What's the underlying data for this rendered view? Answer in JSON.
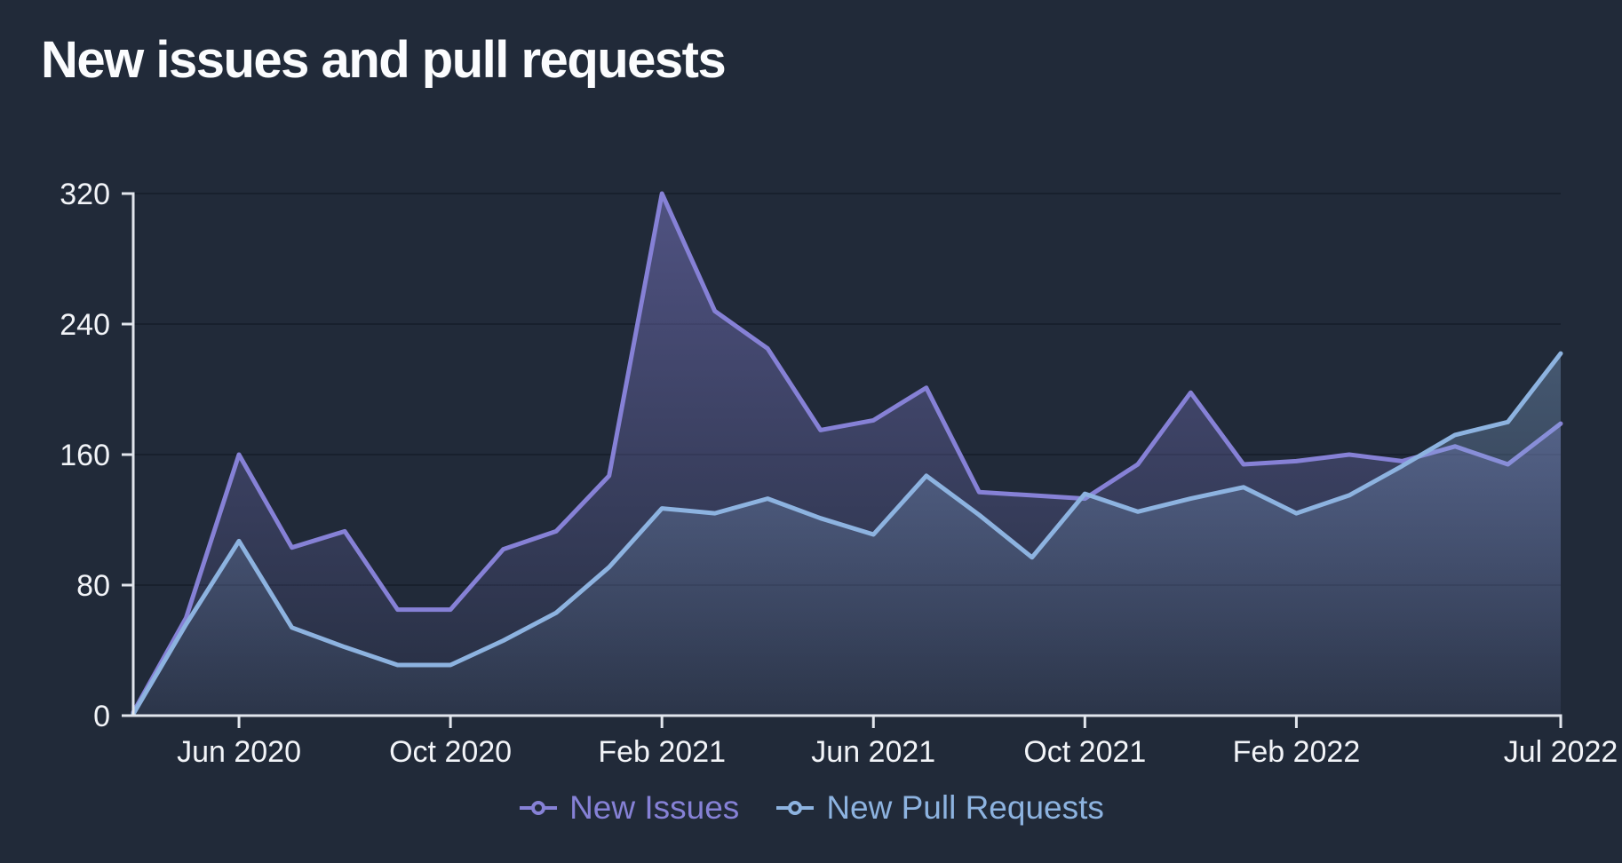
{
  "title": "New issues and pull requests",
  "colors": {
    "background": "#212a39",
    "title_text": "#fbfcfe",
    "axis_line": "#e2e6ed",
    "tick_label": "#f2f4f8",
    "gridline": "rgba(13,19,32,0.45)",
    "issues_line": "#8681d6",
    "pull_requests_line": "#8db3e0"
  },
  "chart_data": {
    "type": "area",
    "title": "New issues and pull requests",
    "x": [
      "Apr 2020",
      "May 2020",
      "Jun 2020",
      "Jul 2020",
      "Aug 2020",
      "Sep 2020",
      "Oct 2020",
      "Nov 2020",
      "Dec 2020",
      "Jan 2021",
      "Feb 2021",
      "Mar 2021",
      "Apr 2021",
      "May 2021",
      "Jun 2021",
      "Jul 2021",
      "Aug 2021",
      "Sep 2021",
      "Oct 2021",
      "Nov 2021",
      "Dec 2021",
      "Jan 2022",
      "Feb 2022",
      "Mar 2022",
      "Apr 2022",
      "May 2022",
      "Jun 2022",
      "Jul 2022"
    ],
    "series": [
      {
        "name": "New Issues",
        "key": "new-issues",
        "color": "#8681d6",
        "values": [
          2,
          60,
          160,
          103,
          113,
          65,
          65,
          102,
          113,
          147,
          320,
          248,
          225,
          175,
          181,
          201,
          137,
          135,
          133,
          154,
          198,
          154,
          156,
          160,
          156,
          165,
          154,
          179
        ]
      },
      {
        "name": "New Pull Requests",
        "key": "new-pull-requests",
        "color": "#8db3e0",
        "values": [
          1,
          56,
          107,
          54,
          42,
          31,
          31,
          46,
          63,
          91,
          127,
          124,
          133,
          121,
          111,
          147,
          123,
          97,
          136,
          125,
          133,
          140,
          124,
          135,
          153,
          172,
          180,
          222
        ]
      }
    ],
    "ylim": [
      0,
      320
    ],
    "y_ticks": [
      0,
      80,
      160,
      240,
      320
    ],
    "x_ticks": [
      {
        "index": 2,
        "label": "Jun 2020"
      },
      {
        "index": 6,
        "label": "Oct 2020"
      },
      {
        "index": 10,
        "label": "Feb 2021"
      },
      {
        "index": 14,
        "label": "Jun 2021"
      },
      {
        "index": 18,
        "label": "Oct 2021"
      },
      {
        "index": 22,
        "label": "Feb 2022"
      },
      {
        "index": 27,
        "label": "Jul 2022"
      }
    ],
    "xlabel": "",
    "ylabel": "",
    "grid": "horizontal",
    "legend_position": "bottom"
  },
  "legend": {
    "items": [
      "New Issues",
      "New Pull Requests"
    ]
  }
}
